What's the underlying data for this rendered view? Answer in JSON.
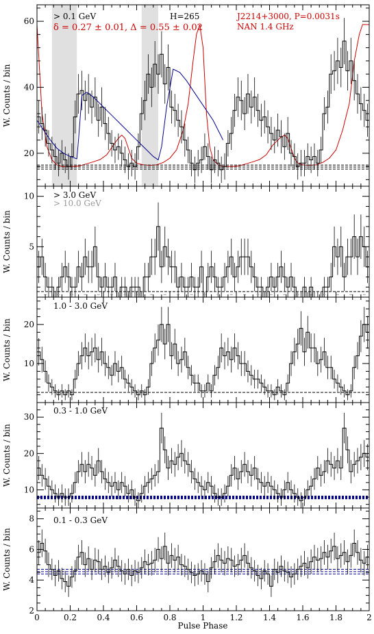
{
  "chart_data": [
    {
      "type": "histogram",
      "panel": "top",
      "ylabel": "W. Counts / bin",
      "ylim": [
        10,
        65
      ],
      "yticks": [
        20,
        40,
        60
      ],
      "annotations": {
        "energy": "> 0.1 GeV",
        "fit": "δ = 0.27 ± 0.01, Δ = 0.55 ± 0.02",
        "htest": "H=265",
        "pulsar": "J2214+3000, P=0.0031s",
        "radio": "NAN 1.4 GHz"
      },
      "background_levels": [
        15.2,
        15.8,
        16.4
      ],
      "shaded_phase_ranges": [
        [
          0.09,
          0.24
        ],
        [
          0.63,
          0.73
        ]
      ],
      "colors": {
        "histogram": "#000000",
        "radio": "#cc0000",
        "fit": "#00008b",
        "shade": "#e0e0e0"
      },
      "counts": [
        31,
        29,
        27,
        23,
        21,
        19,
        17,
        20,
        18,
        16,
        19,
        31,
        38,
        39,
        36,
        38,
        34,
        37,
        30,
        34,
        29,
        26,
        23,
        21,
        22,
        20,
        18,
        16,
        17,
        16,
        22,
        32,
        36,
        44,
        40,
        47,
        44,
        50,
        41,
        46,
        34,
        33,
        30,
        28,
        24,
        21,
        17,
        15,
        17,
        18,
        22,
        19,
        15,
        18,
        17,
        15,
        16,
        23,
        26,
        33,
        37,
        36,
        32,
        38,
        34,
        37,
        33,
        30,
        31,
        28,
        26,
        24,
        27,
        25,
        22,
        26,
        20,
        19,
        16,
        17,
        17,
        19,
        18,
        19,
        17,
        21,
        32,
        34,
        44,
        45,
        48,
        46,
        54,
        45,
        48,
        42,
        38,
        35,
        33,
        30
      ],
      "errors": [
        5,
        5,
        5,
        4,
        4,
        4,
        4,
        4,
        4,
        4,
        4,
        5,
        6,
        6,
        6,
        6,
        5,
        6,
        5,
        6,
        5,
        5,
        4,
        4,
        4,
        4,
        4,
        4,
        4,
        4,
        4,
        5,
        6,
        6,
        6,
        7,
        6,
        7,
        6,
        7,
        5,
        5,
        5,
        5,
        5,
        4,
        4,
        4,
        4,
        4,
        4,
        4,
        4,
        4,
        4,
        4,
        4,
        4,
        5,
        5,
        6,
        6,
        5,
        6,
        5,
        6,
        5,
        5,
        5,
        5,
        5,
        4,
        5,
        5,
        4,
        5,
        4,
        4,
        4,
        4,
        4,
        4,
        4,
        4,
        4,
        4,
        5,
        5,
        6,
        6,
        7,
        6,
        7,
        6,
        7,
        6,
        6,
        5,
        5,
        5
      ],
      "radio_profile": {
        "phase": [
          0.0,
          0.03,
          0.06,
          0.09,
          0.12,
          0.15,
          0.18,
          0.22,
          0.26,
          0.3,
          0.34,
          0.38,
          0.42,
          0.46,
          0.49,
          0.51,
          0.53,
          0.55,
          0.57,
          0.6,
          0.64,
          0.68,
          0.72,
          0.76,
          0.8,
          0.84,
          0.88,
          0.91,
          0.94,
          0.96,
          0.98,
          1.0,
          1.02,
          1.04,
          1.06,
          1.09,
          1.12,
          1.15,
          1.18,
          1.22,
          1.26,
          1.3,
          1.34,
          1.38,
          1.42,
          1.46,
          1.49,
          1.51,
          1.53,
          1.55,
          1.57,
          1.6,
          1.64,
          1.68,
          1.72,
          1.76,
          1.8,
          1.84,
          1.88,
          1.91,
          1.94,
          1.96,
          1.98,
          2.0
        ],
        "flux": [
          59,
          32,
          22,
          18,
          16.5,
          16,
          16,
          16,
          16.2,
          16.8,
          17.4,
          18.1,
          19.5,
          22.5,
          24.5,
          25.5,
          24.5,
          21.5,
          18.5,
          17,
          16.5,
          16.3,
          16.5,
          17.2,
          18.5,
          21,
          27,
          35,
          48,
          56,
          59,
          52,
          32,
          22,
          18,
          16.5,
          16,
          16,
          16,
          16.2,
          16.8,
          17.4,
          18.1,
          19.5,
          22.5,
          24.5,
          25.5,
          24.5,
          21.5,
          18.5,
          17,
          16.5,
          16.3,
          16.5,
          17.2,
          18.5,
          21,
          27,
          35,
          48,
          56,
          59,
          59,
          59
        ]
      },
      "fit_model": {
        "phase": [
          0.0,
          0.04,
          0.08,
          0.12,
          0.16,
          0.2,
          0.24,
          0.25,
          0.27,
          0.3,
          0.34,
          0.38,
          0.42,
          0.46,
          0.5,
          0.54,
          0.58,
          0.62,
          0.66,
          0.7,
          0.73,
          0.75,
          0.78,
          0.82,
          0.86,
          0.9,
          0.94,
          0.98,
          1.02,
          1.06,
          1.1,
          1.12
        ],
        "counts": [
          30,
          27,
          24,
          21.5,
          20,
          19,
          18.3,
          24,
          37.5,
          38.5,
          37,
          35,
          33,
          31,
          29,
          27,
          25,
          23,
          21,
          19,
          18,
          22,
          34,
          45.5,
          44.5,
          42,
          39,
          36,
          33,
          30,
          26,
          24
        ]
      }
    },
    {
      "type": "histogram",
      "panel": "> 3.0 GeV",
      "ylabel": "W. Counts / bin",
      "ylim": [
        0,
        11
      ],
      "yticks": [
        5,
        10
      ],
      "annotations": {
        "energy": "> 3.0 GeV",
        "energy2": "> 10.0 GeV"
      },
      "background_levels": [
        0.55
      ],
      "colors": {
        "histogram": "#000000",
        "secondary": "#999999"
      },
      "counts": [
        3,
        4,
        2,
        1,
        1,
        0,
        1,
        2,
        3,
        2,
        1,
        1,
        3,
        2,
        4,
        3,
        3,
        5,
        2,
        1,
        2,
        1,
        1,
        2,
        0,
        1,
        1,
        0,
        1,
        1,
        1,
        0,
        2,
        2,
        4,
        4,
        7,
        3,
        5,
        4,
        3,
        3,
        1,
        2,
        1,
        1,
        2,
        1,
        1,
        3,
        0,
        2,
        3,
        2,
        1,
        1,
        2,
        3,
        4,
        2,
        3,
        4,
        4,
        4,
        3,
        2,
        1,
        1,
        0,
        1,
        2,
        1,
        2,
        3,
        2,
        1,
        2,
        1,
        0,
        0,
        1,
        0,
        1,
        0,
        0,
        0,
        1,
        1,
        2,
        5,
        4,
        5,
        2,
        4,
        4,
        6,
        4,
        6,
        5,
        3
      ],
      "errors": [
        1.6,
        1.8,
        1.4,
        1.0,
        1.0,
        0.5,
        1.0,
        1.4,
        1.6,
        1.4,
        1.0,
        1.0,
        1.6,
        1.4,
        1.8,
        1.6,
        1.6,
        2.0,
        1.4,
        1.0,
        1.4,
        1.0,
        1.0,
        1.4,
        0.5,
        1.0,
        1.0,
        0.5,
        1.0,
        1.0,
        1.0,
        0.5,
        1.4,
        1.4,
        1.8,
        1.8,
        2.4,
        1.6,
        2.0,
        1.8,
        1.6,
        1.6,
        1.0,
        1.4,
        1.0,
        1.0,
        1.4,
        1.0,
        1.0,
        1.6,
        0.5,
        1.4,
        1.6,
        1.4,
        1.0,
        1.0,
        1.4,
        1.6,
        1.8,
        1.4,
        1.6,
        1.8,
        1.8,
        1.8,
        1.6,
        1.4,
        1.0,
        1.0,
        0.5,
        1.0,
        1.4,
        1.0,
        1.4,
        1.6,
        1.4,
        1.0,
        1.4,
        1.0,
        0.5,
        0.5,
        1.0,
        0.5,
        1.0,
        0.5,
        0.5,
        0.5,
        1.0,
        1.0,
        1.4,
        2.0,
        1.8,
        2.0,
        1.4,
        1.8,
        1.8,
        2.2,
        1.8,
        2.2,
        2.0,
        1.6
      ],
      "secondary_counts": [
        0,
        0,
        0,
        0,
        0,
        0,
        0,
        0,
        0,
        0,
        0,
        0,
        0,
        0,
        0,
        0,
        0,
        0,
        0,
        0,
        0,
        0,
        0,
        0,
        0,
        0,
        0,
        0,
        0,
        0,
        0,
        0,
        0,
        0,
        0,
        0,
        0,
        0,
        0,
        0,
        0,
        0,
        0,
        0,
        0,
        0,
        0,
        0,
        0,
        0,
        0,
        0,
        0,
        0,
        0,
        0,
        0,
        0,
        0,
        0,
        0,
        0,
        0,
        0,
        0,
        0,
        0,
        0,
        0,
        0,
        0,
        0,
        0,
        0,
        0,
        0,
        0,
        0,
        0,
        0,
        0,
        0,
        0,
        0,
        0,
        0,
        0,
        0,
        0,
        0,
        0,
        0,
        0,
        0,
        0,
        0,
        0,
        0,
        0,
        0
      ]
    },
    {
      "type": "histogram",
      "panel": "1.0 - 3.0 GeV",
      "ylabel": "W. Counts / bin",
      "ylim": [
        0,
        27
      ],
      "yticks": [
        10,
        20
      ],
      "annotations": {
        "energy": "1.0 - 3.0 GeV"
      },
      "background_levels": [
        2.6
      ],
      "colors": {
        "histogram": "#000000"
      },
      "counts": [
        13,
        11,
        8,
        5,
        4,
        3,
        2,
        3,
        2,
        3,
        2,
        6,
        10,
        12,
        14,
        12,
        13,
        14,
        11,
        13,
        10,
        9,
        7,
        10,
        8,
        9,
        6,
        5,
        4,
        3,
        2,
        3,
        2,
        4,
        10,
        14,
        16,
        20,
        15,
        20,
        12,
        15,
        10,
        11,
        13,
        9,
        7,
        5,
        5,
        3,
        3,
        5,
        3,
        7,
        9,
        14,
        12,
        13,
        11,
        14,
        12,
        10,
        10,
        8,
        7,
        6,
        6,
        5,
        4,
        3,
        3,
        2,
        4,
        3,
        2,
        5,
        10,
        13,
        15,
        19,
        13,
        18,
        14,
        14,
        10,
        11,
        13,
        9,
        9,
        6,
        5,
        4,
        3,
        2,
        3,
        9,
        12,
        17,
        20,
        18
      ],
      "errors": [
        3.5,
        3.3,
        2.8,
        2.2,
        2.0,
        1.7,
        1.4,
        1.7,
        1.4,
        1.7,
        1.4,
        2.4,
        3.2,
        3.5,
        3.7,
        3.5,
        3.6,
        3.7,
        3.3,
        3.6,
        3.2,
        3.0,
        2.6,
        3.2,
        2.8,
        3.0,
        2.4,
        2.2,
        2.0,
        1.7,
        1.4,
        1.7,
        1.4,
        2.0,
        3.2,
        3.7,
        4.0,
        4.5,
        3.9,
        4.5,
        3.5,
        3.9,
        3.2,
        3.3,
        3.6,
        3.0,
        2.6,
        2.2,
        2.2,
        1.7,
        1.7,
        2.2,
        1.7,
        2.6,
        3.0,
        3.7,
        3.5,
        3.6,
        3.3,
        3.7,
        3.5,
        3.2,
        3.2,
        2.8,
        2.6,
        2.4,
        2.4,
        2.2,
        2.0,
        1.7,
        1.7,
        1.4,
        2.0,
        1.7,
        1.4,
        2.2,
        3.2,
        3.6,
        3.9,
        4.4,
        3.6,
        4.2,
        3.7,
        3.7,
        3.2,
        3.3,
        3.6,
        3.0,
        3.0,
        2.4,
        2.2,
        2.0,
        1.7,
        1.4,
        1.7,
        3.0,
        3.5,
        4.1,
        4.5,
        4.2
      ]
    },
    {
      "type": "histogram",
      "panel": "0.3 - 1.0 GeV",
      "ylabel": "W. Counts / bin",
      "ylim": [
        5,
        34
      ],
      "yticks": [
        10,
        20,
        30
      ],
      "annotations": {
        "energy": "0.3 - 1.0 GeV"
      },
      "background_levels": [
        7.7,
        8.1
      ],
      "colors": {
        "histogram": "#000000",
        "background": "#00008b"
      },
      "counts": [
        16,
        14,
        13,
        11,
        10,
        9,
        8,
        9,
        8,
        8,
        9,
        12,
        15,
        17,
        15,
        17,
        16,
        14,
        18,
        15,
        13,
        12,
        11,
        12,
        10,
        12,
        11,
        9,
        10,
        8,
        7,
        9,
        11,
        12,
        13,
        14,
        15,
        27,
        21,
        16,
        18,
        17,
        19,
        20,
        18,
        17,
        15,
        13,
        12,
        11,
        10,
        12,
        11,
        9,
        8,
        8,
        9,
        11,
        14,
        16,
        13,
        15,
        17,
        15,
        14,
        16,
        13,
        12,
        11,
        12,
        11,
        10,
        9,
        8,
        10,
        12,
        10,
        9,
        8,
        7,
        8,
        10,
        11,
        13,
        16,
        14,
        15,
        18,
        17,
        16,
        18,
        16,
        27,
        21,
        15,
        17,
        18,
        19,
        20,
        19
      ],
      "errors": [
        3.3,
        3.1,
        3.0,
        2.8,
        2.6,
        2.5,
        2.4,
        2.5,
        2.4,
        2.4,
        2.5,
        2.9,
        3.2,
        3.4,
        3.2,
        3.4,
        3.3,
        3.1,
        3.5,
        3.2,
        3.0,
        2.9,
        2.8,
        2.9,
        2.6,
        2.9,
        2.8,
        2.5,
        2.6,
        2.4,
        2.3,
        2.5,
        2.8,
        2.9,
        3.0,
        3.1,
        3.2,
        4.2,
        3.7,
        3.3,
        3.5,
        3.4,
        3.6,
        3.7,
        3.5,
        3.4,
        3.2,
        3.0,
        2.9,
        2.8,
        2.6,
        2.9,
        2.8,
        2.5,
        2.4,
        2.4,
        2.5,
        2.8,
        3.1,
        3.3,
        3.0,
        3.2,
        3.4,
        3.2,
        3.1,
        3.3,
        3.0,
        2.9,
        2.8,
        2.9,
        2.8,
        2.6,
        2.5,
        2.4,
        2.6,
        2.9,
        2.6,
        2.5,
        2.4,
        2.3,
        2.4,
        2.6,
        2.8,
        3.0,
        3.3,
        3.1,
        3.2,
        3.5,
        3.4,
        3.3,
        3.5,
        3.3,
        4.2,
        3.7,
        3.2,
        3.4,
        3.5,
        3.6,
        3.7,
        3.6
      ]
    },
    {
      "type": "histogram",
      "panel": "0.1 - 0.3 GeV",
      "ylabel": "W. Counts / bin",
      "xlabel": "Pulse Phase",
      "xlim": [
        0,
        2
      ],
      "xticks": [
        0,
        0.2,
        0.4,
        0.6,
        0.8,
        1,
        1.2,
        1.4,
        1.6,
        1.8,
        2
      ],
      "ylim": [
        2,
        8.7
      ],
      "yticks": [
        2,
        4,
        6,
        8
      ],
      "annotations": {
        "energy": "0.1 - 0.3 GeV"
      },
      "background_levels": [
        4.4,
        4.55,
        4.7
      ],
      "colors": {
        "histogram": "#000000",
        "background": "#00008b"
      },
      "counts": [
        5.8,
        6.4,
        5.9,
        5.0,
        4.7,
        4.3,
        4.6,
        4.1,
        3.9,
        3.6,
        4.2,
        4.6,
        5.5,
        5.8,
        5.0,
        5.4,
        4.7,
        5.3,
        5.2,
        4.7,
        4.9,
        4.5,
        4.8,
        5.3,
        4.9,
        4.6,
        4.4,
        4.7,
        4.3,
        4.6,
        4.5,
        4.8,
        5.2,
        5.0,
        5.1,
        5.3,
        6.0,
        5.4,
        6.2,
        5.1,
        5.6,
        5.3,
        5.5,
        5.0,
        4.9,
        4.7,
        4.5,
        4.3,
        4.4,
        4.6,
        4.4,
        3.9,
        4.8,
        5.2,
        5.6,
        5.3,
        5.1,
        5.4,
        5.3,
        4.9,
        5.0,
        5.3,
        5.6,
        5.1,
        4.8,
        4.6,
        4.3,
        4.1,
        4.6,
        4.4,
        3.6,
        4.7,
        4.5,
        4.9,
        4.6,
        4.5,
        4.2,
        4.4,
        4.7,
        4.9,
        5.1,
        4.8,
        5.2,
        5.5,
        5.3,
        5.4,
        5.8,
        5.5,
        5.9,
        6.2,
        5.4,
        5.6,
        5.8,
        5.2,
        5.6,
        6.4,
        5.8,
        5.3,
        5.1,
        5.5
      ],
      "errors": [
        0.8,
        0.9,
        0.8,
        0.8,
        0.7,
        0.7,
        0.7,
        0.7,
        0.7,
        0.7,
        0.7,
        0.7,
        0.8,
        0.8,
        0.8,
        0.8,
        0.7,
        0.8,
        0.8,
        0.7,
        0.7,
        0.7,
        0.7,
        0.8,
        0.7,
        0.7,
        0.7,
        0.7,
        0.7,
        0.7,
        0.7,
        0.7,
        0.8,
        0.7,
        0.8,
        0.8,
        0.8,
        0.8,
        0.9,
        0.8,
        0.8,
        0.8,
        0.8,
        0.7,
        0.7,
        0.7,
        0.7,
        0.7,
        0.7,
        0.7,
        0.7,
        0.7,
        0.7,
        0.8,
        0.8,
        0.8,
        0.8,
        0.8,
        0.8,
        0.7,
        0.7,
        0.8,
        0.8,
        0.8,
        0.7,
        0.7,
        0.7,
        0.7,
        0.7,
        0.7,
        0.7,
        0.7,
        0.7,
        0.7,
        0.7,
        0.7,
        0.7,
        0.7,
        0.7,
        0.7,
        0.8,
        0.7,
        0.8,
        0.8,
        0.8,
        0.8,
        0.8,
        0.8,
        0.8,
        0.9,
        0.8,
        0.8,
        0.8,
        0.8,
        0.8,
        0.9,
        0.8,
        0.8,
        0.8,
        0.8
      ]
    }
  ]
}
